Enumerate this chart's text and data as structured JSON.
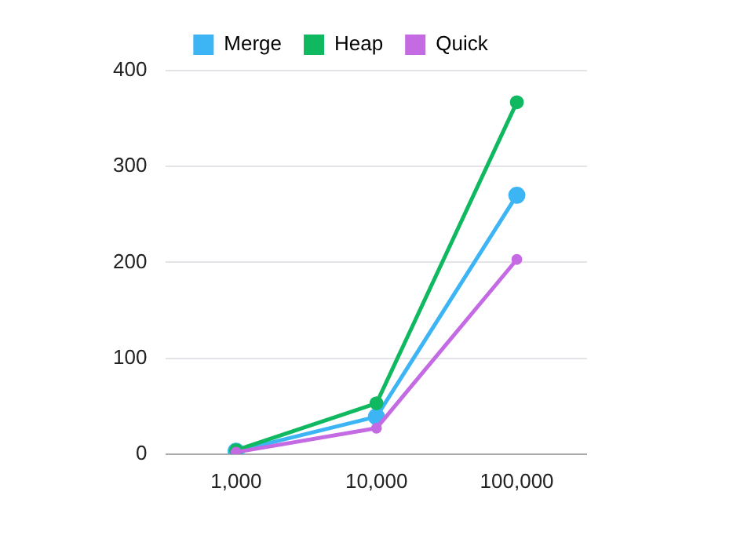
{
  "chart_data": {
    "type": "line",
    "categories": [
      "1,000",
      "10,000",
      "100,000"
    ],
    "series": [
      {
        "name": "Merge",
        "color": "#3db5f5",
        "values": [
          3,
          39,
          270
        ]
      },
      {
        "name": "Heap",
        "color": "#10b960",
        "values": [
          4,
          53,
          367
        ]
      },
      {
        "name": "Quick",
        "color": "#c46ae3",
        "values": [
          2,
          27,
          203
        ]
      }
    ],
    "ylim": [
      0,
      400
    ],
    "yticks": [
      0,
      100,
      200,
      300,
      400
    ],
    "grid": "y",
    "legend": "top",
    "marker": "circle",
    "line_style": "solid"
  }
}
